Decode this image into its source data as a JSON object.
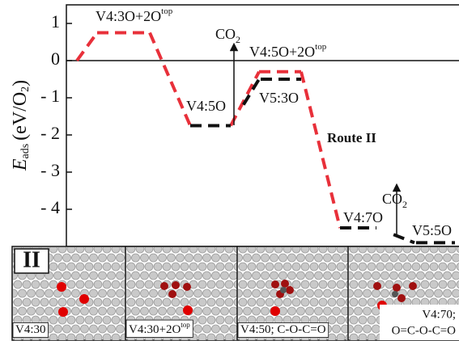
{
  "chart_data": {
    "type": "line",
    "ylabel": {
      "symbol": "E",
      "subscript": "ads",
      "unit": "(eV/O",
      "unit_subscript": "2",
      "unit_end": ")"
    },
    "ylim": [
      -5,
      1.5
    ],
    "yticks": [
      1,
      0,
      {
        "value": -1,
        "label": "- 1"
      },
      {
        "value": -2,
        "label": "- 2"
      },
      {
        "value": -3,
        "label": "- 3"
      },
      {
        "value": -4,
        "label": "- 4"
      }
    ],
    "zero_line": true,
    "series": [
      {
        "color": "#e8303a",
        "values": [
          0,
          0.75,
          -1.75,
          -0.3,
          -4.5,
          null
        ]
      },
      {
        "color": "#111111",
        "values": [
          null,
          null,
          -1.75,
          -0.5,
          null,
          null
        ]
      },
      {
        "color": "#111111",
        "values": [
          null,
          null,
          null,
          null,
          -4.5,
          -4.9
        ]
      }
    ],
    "annotations": [
      {
        "text": "V4:3O+2O",
        "sup": "top"
      },
      {
        "text": "CO",
        "sub": "2"
      },
      {
        "text": "V4:5O+2O",
        "sup": "top"
      },
      {
        "text": "V4:5O"
      },
      {
        "text": "V5:3O"
      },
      {
        "text": "CO",
        "sub": "2"
      },
      {
        "text": "V4:7O"
      },
      {
        "text": "V5:5O"
      }
    ],
    "route": "Route II"
  },
  "panel": {
    "label": "II",
    "frames": [
      {
        "caption": "V4:30"
      },
      {
        "caption": "V4:30+2O",
        "sup": "top"
      },
      {
        "caption": "V4:50; C-O-C=O"
      },
      {
        "caption": "V4:70;",
        "caption2": "O=C-O-C=O"
      }
    ]
  }
}
